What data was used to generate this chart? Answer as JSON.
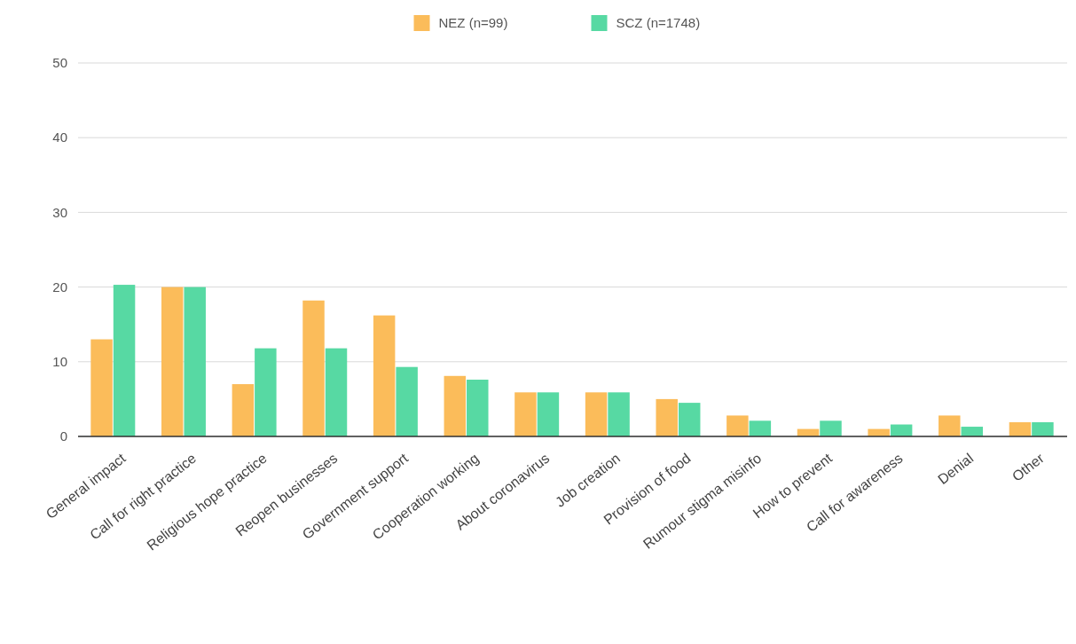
{
  "chart_data": {
    "type": "bar",
    "categories": [
      "General impact",
      "Call for right practice",
      "Religious hope practice",
      "Reopen businesses",
      "Government support",
      "Cooperation working",
      "About coronavirus",
      "Job creation",
      "Provision of food",
      "Rumour stigma misinfo",
      "How to prevent",
      "Call for awareness",
      "Denial",
      "Other"
    ],
    "series": [
      {
        "name": "NEZ (n=99)",
        "color": "#fbbc5a",
        "values": [
          13,
          20,
          7,
          18.2,
          16.2,
          8.1,
          5.9,
          5.9,
          5,
          2.8,
          1,
          1,
          2.8,
          1.9
        ]
      },
      {
        "name": "SCZ (n=1748)",
        "color": "#57d9a3",
        "values": [
          20.3,
          20,
          11.8,
          11.8,
          9.3,
          7.6,
          5.9,
          5.9,
          4.5,
          2.1,
          2.1,
          1.6,
          1.3,
          1.9
        ]
      }
    ],
    "ylim": [
      0,
      50
    ],
    "yticks": [
      0,
      10,
      20,
      30,
      40,
      50
    ],
    "grid": "y",
    "legend": "top"
  }
}
